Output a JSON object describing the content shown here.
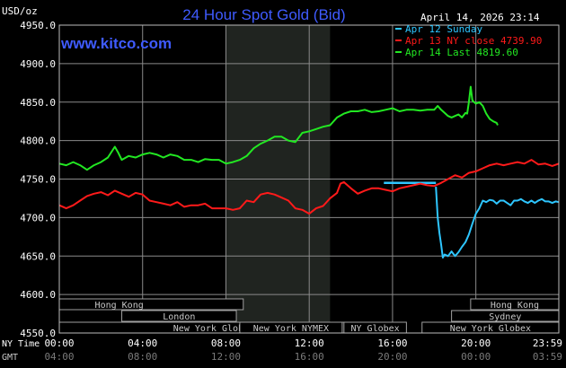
{
  "chart_data": {
    "type": "line",
    "title": "24 Hour Spot Gold (Bid)",
    "ylabel": "USD/oz",
    "watermark": "www.kitco.com",
    "timestamp": "April 14, 2026 23:14",
    "ylim": [
      4550,
      4950
    ],
    "ytick_labels": [
      "4950.0",
      "4900.0",
      "4850.0",
      "4800.0",
      "4750.0",
      "4700.0",
      "4650.0",
      "4600.0",
      "4550.0"
    ],
    "x_minutes_range": [
      0,
      1439
    ],
    "shaded_minutes": [
      480,
      780
    ],
    "xtick_minutes": [
      0,
      240,
      480,
      720,
      960,
      1200,
      1439
    ],
    "xtick_labels_ny": [
      "00:00",
      "04:00",
      "08:00",
      "12:00",
      "16:00",
      "20:00",
      "23:59"
    ],
    "xtick_labels_gmt": [
      "04:00",
      "08:00",
      "12:00",
      "16:00",
      "20:00",
      "00:00",
      "03:59"
    ],
    "xaxis_row_label_ny": "NY Time",
    "xaxis_row_label_gmt": "GMT",
    "grid": true,
    "legend_position": "top-right",
    "colors": {
      "sunday": "#2ec6ff",
      "ny_close": "#ff1a1a",
      "last": "#22e822",
      "ref_line": "#2ec6ff",
      "grid": "#8a8a8a",
      "title": "#3f5bff",
      "watermark": "#3f5bff",
      "text": "#ffffff"
    },
    "series": [
      {
        "name": "Apr 12 Sunday",
        "key": "sunday",
        "points": [
          [
            1085,
            4740
          ],
          [
            1090,
            4700
          ],
          [
            1095,
            4680
          ],
          [
            1100,
            4665
          ],
          [
            1105,
            4648
          ],
          [
            1110,
            4652
          ],
          [
            1120,
            4650
          ],
          [
            1130,
            4656
          ],
          [
            1140,
            4650
          ],
          [
            1150,
            4655
          ],
          [
            1160,
            4662
          ],
          [
            1170,
            4668
          ],
          [
            1180,
            4678
          ],
          [
            1190,
            4692
          ],
          [
            1200,
            4705
          ],
          [
            1210,
            4712
          ],
          [
            1220,
            4722
          ],
          [
            1230,
            4720
          ],
          [
            1240,
            4723
          ],
          [
            1250,
            4722
          ],
          [
            1260,
            4718
          ],
          [
            1270,
            4722
          ],
          [
            1280,
            4722
          ],
          [
            1290,
            4719
          ],
          [
            1300,
            4716
          ],
          [
            1310,
            4722
          ],
          [
            1320,
            4722
          ],
          [
            1330,
            4724
          ],
          [
            1340,
            4721
          ],
          [
            1350,
            4719
          ],
          [
            1360,
            4722
          ],
          [
            1370,
            4719
          ],
          [
            1380,
            4722
          ],
          [
            1390,
            4724
          ],
          [
            1400,
            4721
          ],
          [
            1410,
            4721
          ],
          [
            1420,
            4719
          ],
          [
            1430,
            4721
          ],
          [
            1439,
            4720
          ]
        ]
      },
      {
        "name": "Apr 13 NY close 4739.90",
        "key": "ny_close",
        "points": [
          [
            0,
            4716
          ],
          [
            20,
            4712
          ],
          [
            40,
            4716
          ],
          [
            60,
            4722
          ],
          [
            80,
            4728
          ],
          [
            100,
            4731
          ],
          [
            120,
            4733
          ],
          [
            140,
            4729
          ],
          [
            160,
            4735
          ],
          [
            180,
            4731
          ],
          [
            200,
            4727
          ],
          [
            220,
            4732
          ],
          [
            240,
            4730
          ],
          [
            260,
            4722
          ],
          [
            280,
            4720
          ],
          [
            300,
            4718
          ],
          [
            320,
            4716
          ],
          [
            340,
            4720
          ],
          [
            360,
            4714
          ],
          [
            380,
            4716
          ],
          [
            400,
            4716
          ],
          [
            420,
            4718
          ],
          [
            440,
            4712
          ],
          [
            460,
            4712
          ],
          [
            480,
            4712
          ],
          [
            500,
            4710
          ],
          [
            520,
            4712
          ],
          [
            540,
            4722
          ],
          [
            560,
            4720
          ],
          [
            580,
            4730
          ],
          [
            600,
            4732
          ],
          [
            620,
            4730
          ],
          [
            640,
            4726
          ],
          [
            660,
            4722
          ],
          [
            680,
            4712
          ],
          [
            700,
            4710
          ],
          [
            720,
            4705
          ],
          [
            740,
            4712
          ],
          [
            760,
            4715
          ],
          [
            780,
            4725
          ],
          [
            800,
            4732
          ],
          [
            810,
            4744
          ],
          [
            820,
            4746
          ],
          [
            840,
            4738
          ],
          [
            860,
            4731
          ],
          [
            880,
            4735
          ],
          [
            900,
            4738
          ],
          [
            920,
            4738
          ],
          [
            940,
            4736
          ],
          [
            960,
            4734
          ],
          [
            980,
            4738
          ],
          [
            1000,
            4740
          ],
          [
            1020,
            4742
          ],
          [
            1040,
            4744
          ],
          [
            1060,
            4742
          ],
          [
            1080,
            4741
          ],
          [
            1100,
            4745
          ],
          [
            1120,
            4750
          ],
          [
            1140,
            4755
          ],
          [
            1160,
            4752
          ],
          [
            1180,
            4758
          ],
          [
            1200,
            4760
          ],
          [
            1220,
            4764
          ],
          [
            1240,
            4768
          ],
          [
            1260,
            4770
          ],
          [
            1280,
            4768
          ],
          [
            1300,
            4770
          ],
          [
            1320,
            4772
          ],
          [
            1340,
            4770
          ],
          [
            1360,
            4775
          ],
          [
            1380,
            4769
          ],
          [
            1400,
            4770
          ],
          [
            1420,
            4767
          ],
          [
            1439,
            4770
          ]
        ]
      },
      {
        "name": "Apr 14 Last 4819.60",
        "key": "last",
        "points": [
          [
            0,
            4770
          ],
          [
            20,
            4768
          ],
          [
            40,
            4772
          ],
          [
            60,
            4768
          ],
          [
            80,
            4762
          ],
          [
            100,
            4768
          ],
          [
            120,
            4772
          ],
          [
            140,
            4778
          ],
          [
            160,
            4792
          ],
          [
            170,
            4784
          ],
          [
            180,
            4775
          ],
          [
            200,
            4780
          ],
          [
            220,
            4778
          ],
          [
            240,
            4782
          ],
          [
            260,
            4784
          ],
          [
            280,
            4782
          ],
          [
            300,
            4778
          ],
          [
            320,
            4782
          ],
          [
            340,
            4780
          ],
          [
            360,
            4775
          ],
          [
            380,
            4775
          ],
          [
            400,
            4772
          ],
          [
            420,
            4776
          ],
          [
            440,
            4775
          ],
          [
            460,
            4775
          ],
          [
            480,
            4770
          ],
          [
            500,
            4772
          ],
          [
            520,
            4775
          ],
          [
            540,
            4780
          ],
          [
            560,
            4790
          ],
          [
            580,
            4796
          ],
          [
            600,
            4800
          ],
          [
            620,
            4805
          ],
          [
            640,
            4805
          ],
          [
            660,
            4800
          ],
          [
            680,
            4798
          ],
          [
            700,
            4810
          ],
          [
            720,
            4812
          ],
          [
            740,
            4815
          ],
          [
            760,
            4818
          ],
          [
            780,
            4820
          ],
          [
            800,
            4830
          ],
          [
            820,
            4835
          ],
          [
            840,
            4838
          ],
          [
            860,
            4838
          ],
          [
            880,
            4840
          ],
          [
            900,
            4837
          ],
          [
            920,
            4838
          ],
          [
            940,
            4840
          ],
          [
            960,
            4842
          ],
          [
            980,
            4838
          ],
          [
            1000,
            4840
          ],
          [
            1020,
            4840
          ],
          [
            1040,
            4839
          ],
          [
            1060,
            4840
          ],
          [
            1080,
            4840
          ],
          [
            1090,
            4845
          ],
          [
            1100,
            4840
          ],
          [
            1110,
            4836
          ],
          [
            1120,
            4832
          ],
          [
            1130,
            4830
          ],
          [
            1140,
            4832
          ],
          [
            1150,
            4834
          ],
          [
            1160,
            4830
          ],
          [
            1170,
            4836
          ],
          [
            1175,
            4835
          ],
          [
            1180,
            4850
          ],
          [
            1185,
            4870
          ],
          [
            1190,
            4852
          ],
          [
            1200,
            4848
          ],
          [
            1210,
            4850
          ],
          [
            1220,
            4845
          ],
          [
            1230,
            4835
          ],
          [
            1240,
            4828
          ],
          [
            1250,
            4825
          ],
          [
            1260,
            4823
          ],
          [
            1263,
            4820
          ]
        ]
      }
    ],
    "reference_line": {
      "key": "ref_line",
      "from_minute": 935,
      "to_minute": 1085,
      "value": 4745
    },
    "markets": [
      {
        "label": "Hong Kong",
        "row": 0,
        "from": 145,
        "to": 200,
        "box_from": 0,
        "box_to": 530
      },
      {
        "label": "London",
        "row": 1,
        "from": 180,
        "to": 510,
        "box_from": 180,
        "box_to": 510
      },
      {
        "label": "New York Globex",
        "row": 2,
        "from": 0,
        "to": 890,
        "box_from": 0,
        "box_to": 890
      },
      {
        "label": "New York NYMEX",
        "row": 2,
        "from": 520,
        "to": 815,
        "box_from": 520,
        "box_to": 815
      },
      {
        "label": "NY Globex",
        "row": 2,
        "from": 820,
        "to": 1000,
        "box_from": 820,
        "box_to": 1000
      },
      {
        "label": "Hong Kong",
        "row": 0,
        "from": 1185,
        "to": 1439,
        "box_from": 1185,
        "box_to": 1439
      },
      {
        "label": "Sydney",
        "row": 1,
        "from": 1130,
        "to": 1439,
        "box_from": 1130,
        "box_to": 1439
      },
      {
        "label": "New York Globex",
        "row": 2,
        "from": 1045,
        "to": 1439,
        "box_from": 1045,
        "box_to": 1439
      }
    ]
  }
}
